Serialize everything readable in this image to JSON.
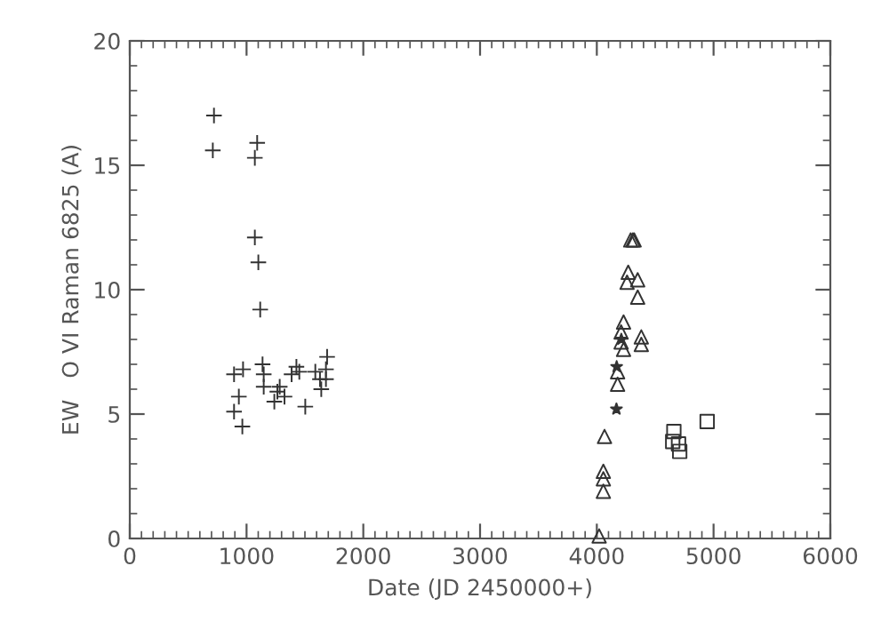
{
  "chart_data": {
    "type": "scatter",
    "xlabel": "Date (JD 2450000+)",
    "ylabel": "EW   O VI Raman 6825 (A)",
    "xlim": [
      0,
      6000
    ],
    "xticks": [
      0,
      1000,
      2000,
      3000,
      4000,
      5000,
      6000
    ],
    "ylim": [
      0,
      20
    ],
    "yticks": [
      0,
      5,
      10,
      15,
      20
    ],
    "grid": false,
    "legend": false,
    "series": [
      {
        "marker": "cross",
        "color": "#333333",
        "x": [
          721,
          711,
          1091,
          1071,
          1071,
          1101,
          1117,
          893,
          970,
          934,
          893,
          964,
          1137,
          1147,
          1147,
          1238,
          1264,
          1284,
          1325,
          1386,
          1427,
          1452,
          1503,
          1589,
          1629,
          1640,
          1680,
          1690,
          1680
        ],
        "values": [
          17.0,
          15.6,
          15.9,
          15.3,
          12.1,
          11.1,
          9.2,
          6.6,
          6.8,
          5.7,
          5.1,
          4.5,
          7.0,
          6.6,
          6.1,
          5.5,
          5.9,
          6.1,
          5.7,
          6.6,
          6.9,
          6.7,
          5.3,
          6.7,
          6.4,
          6.0,
          6.4,
          7.3,
          6.8
        ]
      },
      {
        "marker": "triangle",
        "color": "#333333",
        "x": [
          4290,
          4309,
          4320,
          4269,
          4259,
          4350,
          4350,
          4229,
          4208,
          4208,
          4229,
          4381,
          4381,
          4178,
          4178,
          4066,
          4056,
          4056,
          4056,
          4020
        ],
        "values": [
          12.0,
          12.0,
          12.0,
          10.7,
          10.3,
          10.4,
          9.7,
          8.7,
          8.3,
          7.9,
          7.6,
          8.1,
          7.8,
          6.7,
          6.2,
          4.1,
          2.7,
          2.4,
          1.9,
          0.1
        ]
      },
      {
        "marker": "star",
        "color": "#333333",
        "x": [
          4170,
          4168,
          4210
        ],
        "values": [
          6.9,
          5.2,
          8.0
        ]
      },
      {
        "marker": "square",
        "color": "#333333",
        "x": [
          4945,
          4660,
          4650,
          4700,
          4710
        ],
        "values": [
          4.7,
          4.3,
          3.9,
          3.8,
          3.5
        ]
      }
    ]
  }
}
